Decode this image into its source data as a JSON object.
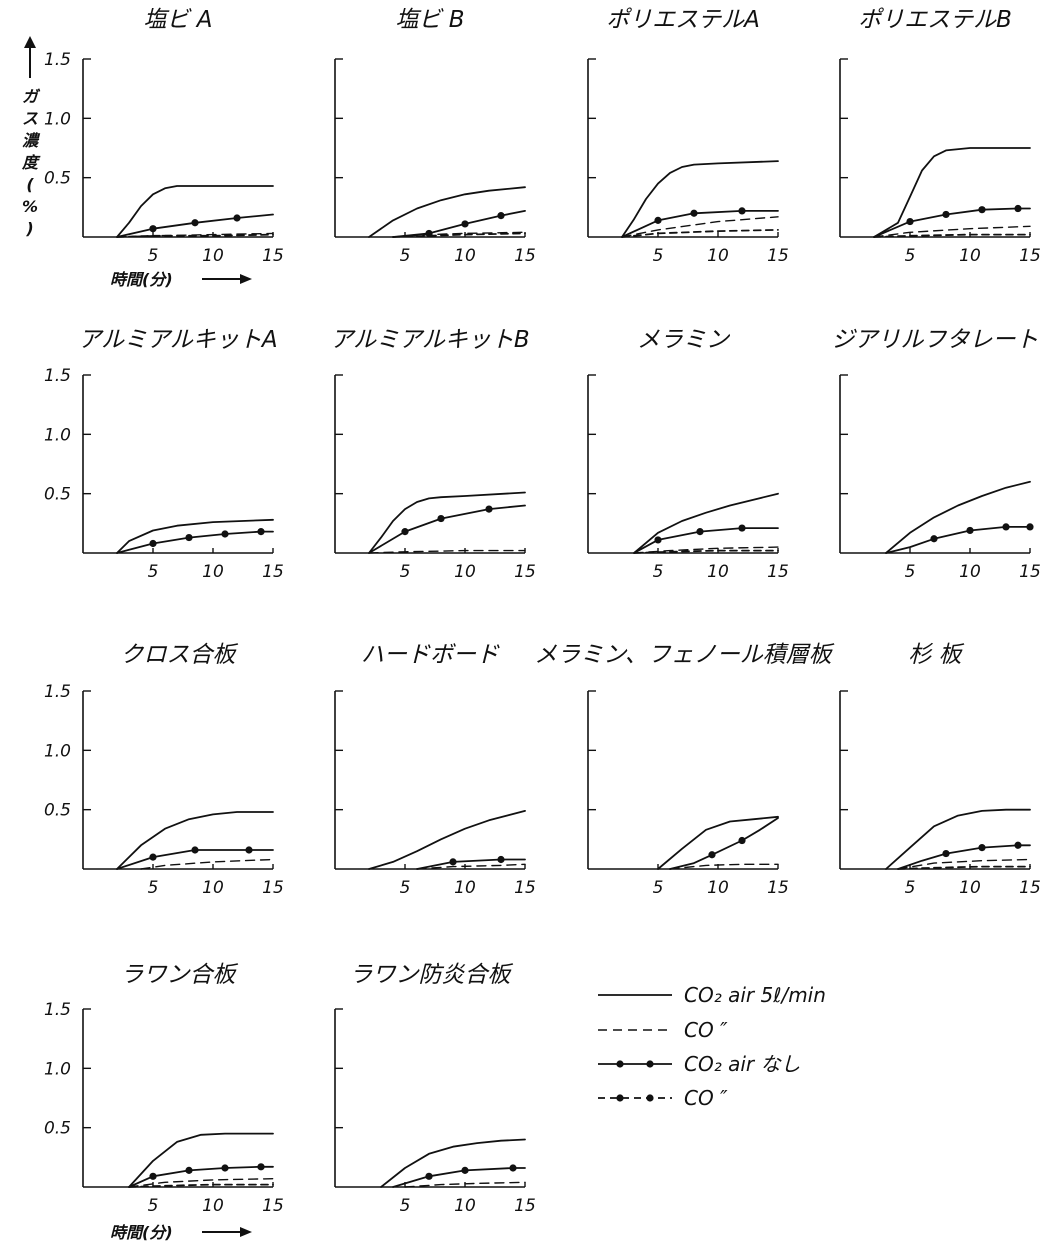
{
  "y_axis_label": "ガス濃度(%)",
  "x_axis_label": "時間(分)",
  "legend": [
    {
      "label": "CO₂ air 5ℓ/min",
      "style": "solid"
    },
    {
      "label": "CO ″",
      "style": "dashed"
    },
    {
      "label": "CO₂ air なし",
      "style": "solid-dot"
    },
    {
      "label": "CO ″",
      "style": "dashed-dot"
    }
  ],
  "chart_data": [
    {
      "type": "line",
      "title": "塩ビ A",
      "xticks": [
        "5",
        "10",
        "15"
      ],
      "yticks": [
        "1.5",
        "1.0",
        "0.5"
      ],
      "xlim": [
        0,
        15
      ],
      "ylim": [
        0,
        1.5
      ],
      "series": [
        {
          "style": "solid",
          "x": [
            2,
            3,
            4,
            5,
            6,
            7,
            8,
            15
          ],
          "y": [
            0,
            0.12,
            0.26,
            0.36,
            0.41,
            0.43,
            0.43,
            0.43
          ]
        },
        {
          "style": "dashed",
          "x": [
            2,
            5,
            10,
            15
          ],
          "y": [
            0,
            0.01,
            0.02,
            0.03
          ]
        },
        {
          "style": "solid-dot",
          "x": [
            2,
            5,
            8.5,
            12,
            15
          ],
          "y": [
            0,
            0.07,
            0.12,
            0.16,
            0.19
          ],
          "markers": [
            5,
            8.5,
            12
          ]
        },
        {
          "style": "dashed-dot",
          "x": [
            2,
            5,
            10,
            15
          ],
          "y": [
            0,
            0.01,
            0.01,
            0.02
          ]
        }
      ]
    },
    {
      "type": "line",
      "title": "塩ビ B",
      "xticks": [
        "5",
        "10",
        "15"
      ],
      "xlim": [
        0,
        15
      ],
      "ylim": [
        0,
        1.5
      ],
      "series": [
        {
          "style": "solid",
          "x": [
            2,
            4,
            6,
            8,
            10,
            12,
            15
          ],
          "y": [
            0,
            0.14,
            0.24,
            0.31,
            0.36,
            0.39,
            0.42
          ]
        },
        {
          "style": "dashed",
          "x": [
            4,
            7,
            10,
            15
          ],
          "y": [
            0,
            0.02,
            0.03,
            0.04
          ]
        },
        {
          "style": "solid-dot",
          "x": [
            4,
            7,
            10,
            13,
            15
          ],
          "y": [
            0,
            0.03,
            0.11,
            0.18,
            0.22
          ],
          "markers": [
            7,
            10,
            13
          ]
        },
        {
          "style": "dashed-dot",
          "x": [
            4,
            7,
            10,
            15
          ],
          "y": [
            0,
            0.01,
            0.02,
            0.03
          ]
        }
      ]
    },
    {
      "type": "line",
      "title": "ポリエステルA",
      "xticks": [
        "5",
        "10",
        "15"
      ],
      "xlim": [
        0,
        15
      ],
      "ylim": [
        0,
        1.5
      ],
      "series": [
        {
          "style": "solid",
          "x": [
            2,
            3,
            4,
            5,
            6,
            7,
            8,
            10,
            15
          ],
          "y": [
            0,
            0.15,
            0.32,
            0.45,
            0.54,
            0.59,
            0.61,
            0.62,
            0.64
          ]
        },
        {
          "style": "dashed",
          "x": [
            2,
            5,
            10,
            15
          ],
          "y": [
            0,
            0.06,
            0.13,
            0.17
          ]
        },
        {
          "style": "solid-dot",
          "x": [
            2,
            5,
            8,
            12,
            15
          ],
          "y": [
            0,
            0.14,
            0.2,
            0.22,
            0.22
          ],
          "markers": [
            5,
            8,
            12
          ]
        },
        {
          "style": "dashed-dot",
          "x": [
            2,
            5,
            10,
            15
          ],
          "y": [
            0,
            0.03,
            0.05,
            0.06
          ]
        }
      ]
    },
    {
      "type": "line",
      "title": "ポリエステルB",
      "xticks": [
        "5",
        "10",
        "15"
      ],
      "xlim": [
        0,
        15
      ],
      "ylim": [
        0,
        1.5
      ],
      "series": [
        {
          "style": "solid",
          "x": [
            2,
            4,
            5,
            6,
            7,
            8,
            10,
            15
          ],
          "y": [
            0,
            0.12,
            0.34,
            0.56,
            0.68,
            0.73,
            0.75,
            0.75
          ]
        },
        {
          "style": "dashed",
          "x": [
            2,
            5,
            10,
            15
          ],
          "y": [
            0,
            0.04,
            0.07,
            0.09
          ]
        },
        {
          "style": "solid-dot",
          "x": [
            2,
            5,
            8,
            11,
            14,
            15
          ],
          "y": [
            0,
            0.13,
            0.19,
            0.23,
            0.24,
            0.24
          ],
          "markers": [
            5,
            8,
            11,
            14
          ]
        },
        {
          "style": "dashed-dot",
          "x": [
            2,
            5,
            10,
            15
          ],
          "y": [
            0,
            0.01,
            0.02,
            0.02
          ]
        }
      ]
    },
    {
      "type": "line",
      "title": "アルミアルキットA",
      "xticks": [
        "5",
        "10",
        "15"
      ],
      "yticks": [
        "1.5",
        "1.0",
        "0.5"
      ],
      "xlim": [
        0,
        15
      ],
      "ylim": [
        0,
        1.5
      ],
      "series": [
        {
          "style": "solid",
          "x": [
            2,
            3,
            5,
            7,
            10,
            15
          ],
          "y": [
            0,
            0.1,
            0.19,
            0.23,
            0.26,
            0.28
          ]
        },
        {
          "style": "solid-dot",
          "x": [
            2,
            5,
            8,
            11,
            14,
            15
          ],
          "y": [
            0,
            0.08,
            0.13,
            0.16,
            0.18,
            0.18
          ],
          "markers": [
            5,
            8,
            11,
            14
          ]
        }
      ]
    },
    {
      "type": "line",
      "title": "アルミアルキットB",
      "xticks": [
        "5",
        "10",
        "15"
      ],
      "xlim": [
        0,
        15
      ],
      "ylim": [
        0,
        1.5
      ],
      "series": [
        {
          "style": "solid",
          "x": [
            2,
            3,
            4,
            5,
            6,
            7,
            8,
            10,
            15
          ],
          "y": [
            0,
            0.13,
            0.27,
            0.37,
            0.43,
            0.46,
            0.47,
            0.48,
            0.51
          ]
        },
        {
          "style": "solid-dot",
          "x": [
            2,
            5,
            8,
            12,
            15
          ],
          "y": [
            0,
            0.18,
            0.29,
            0.37,
            0.4
          ],
          "markers": [
            5,
            8,
            12
          ]
        },
        {
          "style": "dashed",
          "x": [
            2,
            5,
            10,
            15
          ],
          "y": [
            0,
            0.01,
            0.02,
            0.02
          ]
        }
      ]
    },
    {
      "type": "line",
      "title": "メラミン",
      "xticks": [
        "5",
        "10",
        "15"
      ],
      "xlim": [
        0,
        15
      ],
      "ylim": [
        0,
        1.5
      ],
      "series": [
        {
          "style": "solid",
          "x": [
            3,
            5,
            7,
            9,
            11,
            13,
            15
          ],
          "y": [
            0,
            0.17,
            0.27,
            0.34,
            0.4,
            0.45,
            0.5
          ]
        },
        {
          "style": "solid-dot",
          "x": [
            3,
            5,
            8.5,
            12,
            15
          ],
          "y": [
            0,
            0.11,
            0.18,
            0.21,
            0.21
          ],
          "markers": [
            5,
            8.5,
            12
          ]
        },
        {
          "style": "dashed",
          "x": [
            3,
            6,
            10,
            15
          ],
          "y": [
            0,
            0.02,
            0.04,
            0.05
          ]
        },
        {
          "style": "dashed-dot",
          "x": [
            3,
            6,
            10,
            15
          ],
          "y": [
            0,
            0.01,
            0.02,
            0.02
          ]
        }
      ]
    },
    {
      "type": "line",
      "title": "ジアリルフタレート",
      "xticks": [
        "5",
        "10",
        "15"
      ],
      "xlim": [
        0,
        15
      ],
      "ylim": [
        0,
        1.5
      ],
      "series": [
        {
          "style": "solid",
          "x": [
            3,
            5,
            7,
            9,
            11,
            13,
            15
          ],
          "y": [
            0,
            0.17,
            0.3,
            0.4,
            0.48,
            0.55,
            0.6
          ]
        },
        {
          "style": "solid-dot",
          "x": [
            3,
            5,
            7,
            10,
            13,
            15
          ],
          "y": [
            0,
            0.05,
            0.12,
            0.19,
            0.22,
            0.22
          ],
          "markers": [
            7,
            10,
            13,
            15
          ]
        }
      ]
    },
    {
      "type": "line",
      "title": "クロス合板",
      "xticks": [
        "5",
        "10",
        "15"
      ],
      "yticks": [
        "1.5",
        "1.0",
        "0.5"
      ],
      "xlim": [
        0,
        15
      ],
      "ylim": [
        0,
        1.5
      ],
      "series": [
        {
          "style": "solid",
          "x": [
            2,
            4,
            6,
            8,
            10,
            12,
            15
          ],
          "y": [
            0,
            0.2,
            0.34,
            0.42,
            0.46,
            0.48,
            0.48
          ]
        },
        {
          "style": "dashed",
          "x": [
            4,
            6,
            10,
            15
          ],
          "y": [
            0,
            0.03,
            0.06,
            0.08
          ]
        },
        {
          "style": "solid-dot",
          "x": [
            2,
            5,
            8.5,
            13,
            15
          ],
          "y": [
            0,
            0.1,
            0.16,
            0.16,
            0.16
          ],
          "markers": [
            5,
            8.5,
            13
          ]
        }
      ]
    },
    {
      "type": "line",
      "title": "ハードボード",
      "xticks": [
        "5",
        "10",
        "15"
      ],
      "xlim": [
        0,
        15
      ],
      "ylim": [
        0,
        1.5
      ],
      "series": [
        {
          "style": "solid",
          "x": [
            2,
            4,
            6,
            8,
            10,
            12,
            15
          ],
          "y": [
            0,
            0.06,
            0.15,
            0.25,
            0.34,
            0.41,
            0.49
          ]
        },
        {
          "style": "solid-dot",
          "x": [
            6,
            9,
            13,
            15
          ],
          "y": [
            0,
            0.06,
            0.08,
            0.08
          ],
          "markers": [
            9,
            13
          ]
        },
        {
          "style": "dashed",
          "x": [
            6,
            9,
            13,
            15
          ],
          "y": [
            0,
            0.02,
            0.03,
            0.04
          ]
        }
      ]
    },
    {
      "type": "line",
      "title": "メラミン、フェノール積層板",
      "xticks": [
        "5",
        "10",
        "15"
      ],
      "xlim": [
        0,
        15
      ],
      "ylim": [
        0,
        1.5
      ],
      "series": [
        {
          "style": "solid",
          "x": [
            5,
            7,
            9,
            11,
            13,
            15
          ],
          "y": [
            0,
            0.17,
            0.33,
            0.4,
            0.42,
            0.44
          ]
        },
        {
          "style": "solid-dot",
          "x": [
            6,
            8,
            9.5,
            12,
            13.5,
            15
          ],
          "y": [
            0,
            0.05,
            0.12,
            0.24,
            0.33,
            0.43
          ],
          "markers": [
            9.5,
            12
          ]
        },
        {
          "style": "dashed",
          "x": [
            6,
            9,
            12,
            15
          ],
          "y": [
            0,
            0.03,
            0.04,
            0.04
          ]
        }
      ]
    },
    {
      "type": "line",
      "title": "杉 板",
      "xticks": [
        "5",
        "10",
        "15"
      ],
      "xlim": [
        0,
        15
      ],
      "ylim": [
        0,
        1.5
      ],
      "series": [
        {
          "style": "solid",
          "x": [
            3,
            5,
            7,
            9,
            11,
            13,
            15
          ],
          "y": [
            0,
            0.18,
            0.36,
            0.45,
            0.49,
            0.5,
            0.5
          ]
        },
        {
          "style": "solid-dot",
          "x": [
            4,
            6,
            8,
            11,
            14,
            15
          ],
          "y": [
            0,
            0.07,
            0.13,
            0.18,
            0.2,
            0.2
          ],
          "markers": [
            8,
            11,
            14
          ]
        },
        {
          "style": "dashed",
          "x": [
            4,
            7,
            11,
            15
          ],
          "y": [
            0,
            0.05,
            0.07,
            0.08
          ]
        },
        {
          "style": "dashed-dot",
          "x": [
            4,
            7,
            11,
            15
          ],
          "y": [
            0,
            0.01,
            0.02,
            0.02
          ]
        }
      ]
    },
    {
      "type": "line",
      "title": "ラワン合板",
      "xticks": [
        "5",
        "10",
        "15"
      ],
      "yticks": [
        "1.5",
        "1.0",
        "0.5"
      ],
      "xlim": [
        0,
        15
      ],
      "ylim": [
        0,
        1.5
      ],
      "series": [
        {
          "style": "solid",
          "x": [
            3,
            5,
            7,
            9,
            11,
            15
          ],
          "y": [
            0,
            0.22,
            0.38,
            0.44,
            0.45,
            0.45
          ]
        },
        {
          "style": "solid-dot",
          "x": [
            3,
            5,
            8,
            11,
            14,
            15
          ],
          "y": [
            0,
            0.09,
            0.14,
            0.16,
            0.17,
            0.17
          ],
          "markers": [
            5,
            8,
            11,
            14
          ]
        },
        {
          "style": "dashed",
          "x": [
            3,
            6,
            10,
            15
          ],
          "y": [
            0,
            0.04,
            0.06,
            0.07
          ]
        },
        {
          "style": "dashed-dot",
          "x": [
            3,
            6,
            10,
            15
          ],
          "y": [
            0,
            0.01,
            0.02,
            0.02
          ]
        }
      ]
    },
    {
      "type": "line",
      "title": "ラワン防炎合板",
      "xticks": [
        "5",
        "10",
        "15"
      ],
      "xlim": [
        0,
        15
      ],
      "ylim": [
        0,
        1.5
      ],
      "series": [
        {
          "style": "solid",
          "x": [
            3,
            5,
            7,
            9,
            11,
            13,
            15
          ],
          "y": [
            0,
            0.16,
            0.28,
            0.34,
            0.37,
            0.39,
            0.4
          ]
        },
        {
          "style": "solid-dot",
          "x": [
            4,
            7,
            10,
            14,
            15
          ],
          "y": [
            0,
            0.09,
            0.14,
            0.16,
            0.16
          ],
          "markers": [
            7,
            10,
            14
          ]
        },
        {
          "style": "dashed",
          "x": [
            5,
            8,
            11,
            15
          ],
          "y": [
            0,
            0.02,
            0.03,
            0.04
          ]
        }
      ]
    }
  ]
}
